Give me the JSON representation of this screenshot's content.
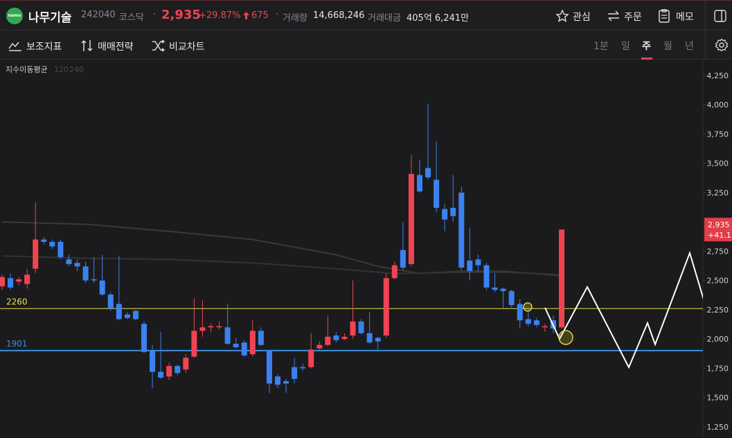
{
  "header": {
    "logo": "namu",
    "name": "나무기술",
    "code": "242040",
    "market": "코스닥",
    "price": "2,935",
    "change_pct": "+29.87%",
    "change": "675",
    "volume_label": "거래량",
    "volume": "14,668,246",
    "amount_label": "거래대금",
    "amount": "405억 6,241만",
    "actions": [
      "관심",
      "주문",
      "메모"
    ]
  },
  "toolbar": {
    "tools": [
      "보조지표",
      "매매전략",
      "비교차트"
    ],
    "periods": [
      "1분",
      "일",
      "주",
      "월",
      "년"
    ],
    "active_period": "주"
  },
  "chart_data": {
    "type": "candlestick",
    "legend_title": "지수이동평균",
    "up_color": "#f04452",
    "down_color": "#3b82f0",
    "ylim": [
      1155,
      4386
    ],
    "yticks": [
      {
        "value": 4250,
        "label": "4,250"
      },
      {
        "value": 4000,
        "label": "4,000"
      },
      {
        "value": 3750,
        "label": "3,750"
      },
      {
        "value": 3500,
        "label": "3,500"
      },
      {
        "value": 3250,
        "label": "3,250"
      },
      {
        "value": 3000,
        "label": "3,000"
      },
      {
        "value": 2750,
        "label": "2,750"
      },
      {
        "value": 2500,
        "label": "2,500"
      },
      {
        "value": 2250,
        "label": "2,250"
      },
      {
        "value": 2000,
        "label": "2,000"
      },
      {
        "value": 1750,
        "label": "1,750"
      },
      {
        "value": 1500,
        "label": "1,500"
      },
      {
        "value": 1250,
        "label": "1,250"
      }
    ],
    "candles": {
      "open": [
        2450,
        2520,
        2490,
        2470,
        2600,
        2850,
        2830,
        2830,
        2680,
        2650,
        2620,
        2510,
        2500,
        2380,
        2300,
        2210,
        2240,
        2130,
        1900,
        1720,
        1680,
        1770,
        1740,
        1850,
        2070,
        2100,
        2100,
        2100,
        1960,
        1970,
        1870,
        2070,
        1900,
        1680,
        1640,
        1760,
        1760,
        1760,
        1920,
        1950,
        2030,
        2000,
        2030,
        2150,
        2050,
        2010,
        2030,
        2520,
        2760,
        2640,
        3400,
        3460,
        3360,
        3110,
        3120,
        3250,
        2670,
        2680,
        2630,
        2440,
        2430,
        2410,
        2300,
        2170,
        2160,
        2100,
        2160,
        2100
      ],
      "close": [
        2530,
        2440,
        2510,
        2550,
        2850,
        2830,
        2790,
        2700,
        2640,
        2620,
        2500,
        2500,
        2380,
        2260,
        2170,
        2180,
        2170,
        1890,
        1720,
        1670,
        1770,
        1710,
        1840,
        2070,
        2100,
        2110,
        2110,
        1960,
        1930,
        1860,
        2070,
        1950,
        1620,
        1610,
        1620,
        1660,
        1750,
        1910,
        1950,
        2020,
        1990,
        2020,
        2150,
        2050,
        1970,
        1980,
        2520,
        2630,
        2610,
        3410,
        3260,
        3380,
        3120,
        3020,
        3050,
        2610,
        2580,
        2630,
        2440,
        2420,
        2410,
        2290,
        2160,
        2130,
        2120,
        2110,
        2090,
        2935
      ],
      "high": [
        2550,
        2560,
        2530,
        2600,
        3170,
        2870,
        2850,
        2850,
        2720,
        2680,
        2660,
        2700,
        2720,
        2400,
        2710,
        2230,
        2250,
        2150,
        1950,
        2060,
        1800,
        1780,
        1870,
        2350,
        2330,
        2130,
        2150,
        2300,
        2010,
        1990,
        2160,
        2100,
        1910,
        1700,
        1660,
        1840,
        1790,
        2050,
        1980,
        2200,
        2060,
        2050,
        2500,
        2170,
        2230,
        2020,
        2560,
        2660,
        3000,
        3570,
        3530,
        4010,
        3690,
        3150,
        3400,
        3300,
        2950,
        2720,
        2650,
        2560,
        2440,
        2420,
        2340,
        2250,
        2180,
        2130,
        2200,
        2935
      ],
      "low": [
        2420,
        2420,
        2460,
        2430,
        2560,
        2810,
        2770,
        2680,
        2620,
        2580,
        2480,
        2480,
        2370,
        2240,
        2160,
        2170,
        2160,
        1880,
        1580,
        1660,
        1650,
        1690,
        1710,
        1840,
        2020,
        2060,
        2080,
        1950,
        1920,
        1850,
        1850,
        1940,
        1540,
        1580,
        1540,
        1620,
        1730,
        1750,
        1910,
        1940,
        1970,
        1990,
        2000,
        2040,
        1960,
        1900,
        2010,
        2510,
        2590,
        2620,
        3250,
        3360,
        3080,
        2920,
        3000,
        2590,
        2500,
        2570,
        2420,
        2400,
        2260,
        2270,
        2090,
        2110,
        2100,
        2060,
        2050,
        2090
      ]
    },
    "series": [
      {
        "name": "120",
        "color": "#3a3a3c",
        "x": [
          0,
          10,
          20,
          30,
          40,
          45,
          50,
          55,
          60,
          67
        ],
        "values": [
          3000,
          2980,
          2920,
          2850,
          2720,
          2620,
          2560,
          2580,
          2580,
          2540
        ]
      },
      {
        "name": "240",
        "color": "#333335",
        "x": [
          0,
          10,
          20,
          30,
          40,
          47,
          55,
          60,
          67
        ],
        "values": [
          2710,
          2690,
          2680,
          2650,
          2600,
          2560,
          2570,
          2570,
          2550
        ]
      }
    ],
    "hlines": [
      {
        "value": 2260,
        "color": "#e8e04a"
      },
      {
        "value": 1901,
        "color": "#3d8fe0"
      }
    ],
    "last": {
      "value": 2935,
      "label": "2,935",
      "change": "+41.11"
    }
  }
}
